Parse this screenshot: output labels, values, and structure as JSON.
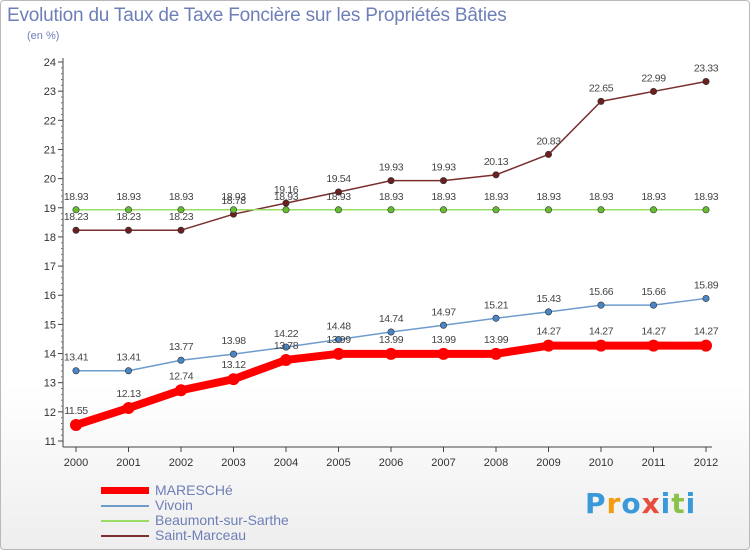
{
  "title": "Evolution du Taux de Taxe Foncière sur les Propriétés Bâties",
  "unit_label": "(en %)",
  "logo": {
    "text": "Proxiti",
    "letters": [
      "P",
      "r",
      "o",
      "x",
      "i",
      "t",
      "i"
    ],
    "colors": [
      "#3a9ad9",
      "#f39c12",
      "#3a9ad9",
      "#e74c3c",
      "#3a9ad9",
      "#8bc34a",
      "#3a9ad9"
    ]
  },
  "chart_data": {
    "type": "line",
    "title": "Evolution du Taux de Taxe Foncière sur les Propriétés Bâties",
    "ylabel": "(en %)",
    "xlabel": "",
    "ylim": [
      11,
      24
    ],
    "yticks": [
      "11",
      "12",
      "13",
      "14",
      "15",
      "16",
      "17",
      "18",
      "19",
      "20",
      "21",
      "22",
      "23",
      "24"
    ],
    "categories": [
      "2000",
      "2001",
      "2002",
      "2003",
      "2004",
      "2005",
      "2006",
      "2007",
      "2008",
      "2009",
      "2010",
      "2011",
      "2012"
    ],
    "grid": false,
    "legend_position": "bottom-left",
    "series": [
      {
        "name": "Saint-Marceau",
        "color": "#7a2e2e",
        "marker": "#6b1f1f",
        "values": [
          18.23,
          18.23,
          18.23,
          18.78,
          19.16,
          19.54,
          19.93,
          19.93,
          20.13,
          20.83,
          22.65,
          22.99,
          23.33
        ],
        "labels": [
          "18.23",
          "18.23",
          "18.23",
          "18.78",
          "19.16",
          "19.54",
          "19.93",
          "19.93",
          "20.13",
          "20.83",
          "22.65",
          "22.99",
          "23.33"
        ]
      },
      {
        "name": "Beaumont-sur-Sarthe",
        "color": "#99dd66",
        "marker": "#66bb33",
        "values": [
          18.93,
          18.93,
          18.93,
          18.93,
          18.93,
          18.93,
          18.93,
          18.93,
          18.93,
          18.93,
          18.93,
          18.93,
          18.93
        ],
        "labels": [
          "18.93",
          "18.93",
          "18.93",
          "18.93",
          "18.93",
          "18.93",
          "18.93",
          "18.93",
          "18.93",
          "18.93",
          "18.93",
          "18.93",
          "18.93"
        ]
      },
      {
        "name": "Vivoin",
        "color": "#6e9ccc",
        "marker": "#4a86c6",
        "values": [
          13.41,
          13.41,
          13.77,
          13.98,
          14.22,
          14.48,
          14.74,
          14.97,
          15.21,
          15.43,
          15.66,
          15.66,
          15.89
        ],
        "labels": [
          "13.41",
          "13.41",
          "13.77",
          "13.98",
          "14.22",
          "14.48",
          "14.74",
          "14.97",
          "15.21",
          "15.43",
          "15.66",
          "15.66",
          "15.89"
        ]
      },
      {
        "name": "MARESCHé",
        "color": "#ff0000",
        "marker": "#ff0000",
        "values": [
          11.55,
          12.13,
          12.74,
          13.12,
          13.78,
          13.99,
          13.99,
          13.99,
          13.99,
          14.27,
          14.27,
          14.27,
          14.27
        ],
        "labels": [
          "11.55",
          "12.13",
          "12.74",
          "13.12",
          "13.78",
          "13.99",
          "13.99",
          "13.99",
          "13.99",
          "14.27",
          "14.27",
          "14.27",
          "14.27"
        ]
      }
    ],
    "legend_order": [
      "MARESCHé",
      "Vivoin",
      "Beaumont-sur-Sarthe",
      "Saint-Marceau"
    ]
  }
}
